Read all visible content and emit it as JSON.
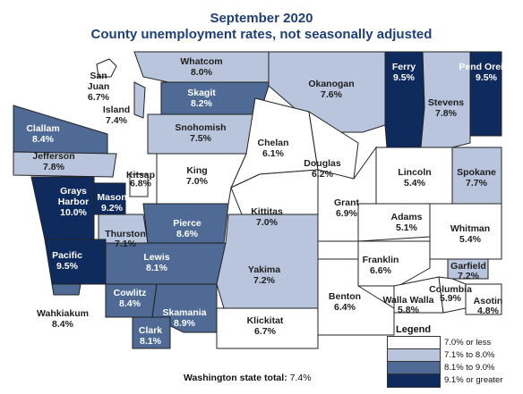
{
  "title_line1": "September 2020",
  "title_line2": "County unemployment rates, not seasonally adjusted",
  "colors": {
    "c1": "#ffffff",
    "c2": "#b8c5dd",
    "c3": "#4e6a95",
    "c4": "#0f2a5c",
    "border": "#222222"
  },
  "counties": [
    {
      "name": "San Juan",
      "rate": "6.7%",
      "tier": "c1"
    },
    {
      "name": "Whatcom",
      "rate": "8.0%",
      "tier": "c2"
    },
    {
      "name": "Island",
      "rate": "7.4%",
      "tier": "c2"
    },
    {
      "name": "Skagit",
      "rate": "8.2%",
      "tier": "c3"
    },
    {
      "name": "Okanogan",
      "rate": "7.6%",
      "tier": "c2"
    },
    {
      "name": "Ferry",
      "rate": "9.5%",
      "tier": "c4"
    },
    {
      "name": "Stevens",
      "rate": "7.8%",
      "tier": "c2"
    },
    {
      "name": "Pend Oreille",
      "rate": "9.5%",
      "tier": "c4"
    },
    {
      "name": "Clallam",
      "rate": "8.4%",
      "tier": "c3"
    },
    {
      "name": "Jefferson",
      "rate": "7.8%",
      "tier": "c2"
    },
    {
      "name": "Snohomish",
      "rate": "7.5%",
      "tier": "c2"
    },
    {
      "name": "Chelan",
      "rate": "6.1%",
      "tier": "c1"
    },
    {
      "name": "Douglas",
      "rate": "6.2%",
      "tier": "c1"
    },
    {
      "name": "Lincoln",
      "rate": "5.4%",
      "tier": "c1"
    },
    {
      "name": "Spokane",
      "rate": "7.7%",
      "tier": "c2"
    },
    {
      "name": "Grays Harbor",
      "rate": "10.0%",
      "tier": "c4"
    },
    {
      "name": "Mason",
      "rate": "9.2%",
      "tier": "c4"
    },
    {
      "name": "Kitsap",
      "rate": "6.8%",
      "tier": "c1"
    },
    {
      "name": "King",
      "rate": "7.0%",
      "tier": "c1"
    },
    {
      "name": "Kittitas",
      "rate": "7.0%",
      "tier": "c1"
    },
    {
      "name": "Grant",
      "rate": "6.9%",
      "tier": "c1"
    },
    {
      "name": "Adams",
      "rate": "5.1%",
      "tier": "c1"
    },
    {
      "name": "Whitman",
      "rate": "5.4%",
      "tier": "c1"
    },
    {
      "name": "Thurston",
      "rate": "7.1%",
      "tier": "c2"
    },
    {
      "name": "Pierce",
      "rate": "8.6%",
      "tier": "c3"
    },
    {
      "name": "Pacific",
      "rate": "9.5%",
      "tier": "c4"
    },
    {
      "name": "Lewis",
      "rate": "8.1%",
      "tier": "c3"
    },
    {
      "name": "Yakima",
      "rate": "7.2%",
      "tier": "c2"
    },
    {
      "name": "Franklin",
      "rate": "6.6%",
      "tier": "c1"
    },
    {
      "name": "Garfield",
      "rate": "7.2%",
      "tier": "c2"
    },
    {
      "name": "Wahkiakum",
      "rate": "8.4%",
      "tier": "c3"
    },
    {
      "name": "Cowlitz",
      "rate": "8.4%",
      "tier": "c3"
    },
    {
      "name": "Skamania",
      "rate": "8.9%",
      "tier": "c3"
    },
    {
      "name": "Clark",
      "rate": "8.1%",
      "tier": "c3"
    },
    {
      "name": "Klickitat",
      "rate": "6.7%",
      "tier": "c1"
    },
    {
      "name": "Benton",
      "rate": "6.4%",
      "tier": "c1"
    },
    {
      "name": "Walla Walla",
      "rate": "5.8%",
      "tier": "c1"
    },
    {
      "name": "Columbia",
      "rate": "5.9%",
      "tier": "c1"
    },
    {
      "name": "Asotin",
      "rate": "4.8%",
      "tier": "c1"
    }
  ],
  "legend": {
    "title": "Legend",
    "items": [
      {
        "label": "7.0% or less",
        "tier": "c1"
      },
      {
        "label": "7.1% to 8.0%",
        "tier": "c2"
      },
      {
        "label": "8.1% to 9.0%",
        "tier": "c3"
      },
      {
        "label": "9.1% or greater",
        "tier": "c4"
      }
    ]
  },
  "state_total_label": "Washington state total:",
  "state_total_value": "7.4%"
}
